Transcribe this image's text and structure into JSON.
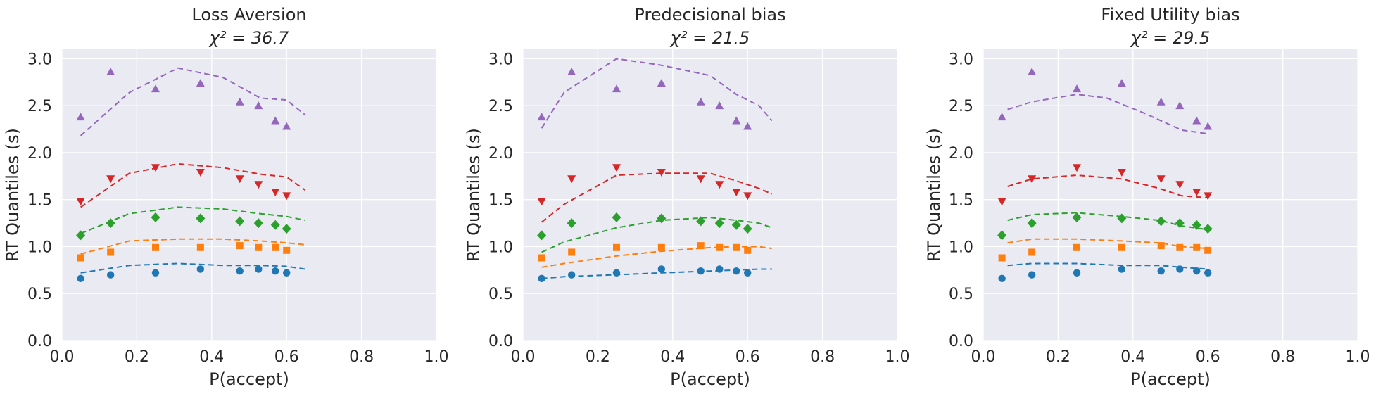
{
  "chart_data": [
    {
      "type": "scatter",
      "title": "Loss Aversion",
      "subtitle": "χ² = 36.7",
      "xlabel": "P(accept)",
      "ylabel": "RT Quantiles (s)",
      "xlim": [
        0.0,
        1.0
      ],
      "ylim": [
        0.0,
        3.1
      ],
      "xticks": [
        "0.0",
        "0.2",
        "0.4",
        "0.6",
        "0.8",
        "1.0"
      ],
      "yticks": [
        "0.0",
        "0.5",
        "1.0",
        "1.5",
        "2.0",
        "2.5",
        "3.0"
      ],
      "grid": true,
      "series": [
        {
          "color": "#1f77b4",
          "marker": "circle",
          "observed": {
            "x": [
              0.05,
              0.13,
              0.25,
              0.37,
              0.475,
              0.525,
              0.57,
              0.6
            ],
            "y": [
              0.66,
              0.7,
              0.72,
              0.76,
              0.74,
              0.76,
              0.74,
              0.72
            ]
          },
          "model": {
            "x": [
              0.05,
              0.18,
              0.31,
              0.43,
              0.53,
              0.6,
              0.65
            ],
            "y": [
              0.72,
              0.8,
              0.82,
              0.8,
              0.8,
              0.79,
              0.76
            ]
          }
        },
        {
          "color": "#ff7f0e",
          "marker": "square",
          "observed": {
            "x": [
              0.05,
              0.13,
              0.25,
              0.37,
              0.475,
              0.525,
              0.57,
              0.6
            ],
            "y": [
              0.88,
              0.94,
              0.99,
              0.99,
              1.01,
              0.99,
              0.99,
              0.96
            ]
          },
          "model": {
            "x": [
              0.05,
              0.18,
              0.31,
              0.43,
              0.53,
              0.6,
              0.65
            ],
            "y": [
              0.92,
              1.06,
              1.08,
              1.08,
              1.06,
              1.04,
              1.02
            ]
          }
        },
        {
          "color": "#2ca02c",
          "marker": "diamond",
          "observed": {
            "x": [
              0.05,
              0.13,
              0.25,
              0.37,
              0.475,
              0.525,
              0.57,
              0.6
            ],
            "y": [
              1.12,
              1.25,
              1.31,
              1.3,
              1.27,
              1.25,
              1.23,
              1.19
            ]
          },
          "model": {
            "x": [
              0.05,
              0.18,
              0.31,
              0.43,
              0.53,
              0.6,
              0.65
            ],
            "y": [
              1.14,
              1.35,
              1.42,
              1.4,
              1.35,
              1.32,
              1.28
            ]
          }
        },
        {
          "color": "#d62728",
          "marker": "triangle-down",
          "observed": {
            "x": [
              0.05,
              0.13,
              0.25,
              0.37,
              0.475,
              0.525,
              0.57,
              0.6
            ],
            "y": [
              1.48,
              1.72,
              1.84,
              1.79,
              1.72,
              1.66,
              1.58,
              1.54
            ]
          },
          "model": {
            "x": [
              0.05,
              0.18,
              0.31,
              0.43,
              0.53,
              0.6,
              0.65
            ],
            "y": [
              1.42,
              1.78,
              1.88,
              1.84,
              1.77,
              1.74,
              1.6
            ]
          }
        },
        {
          "color": "#9467bd",
          "marker": "triangle-up",
          "observed": {
            "x": [
              0.05,
              0.13,
              0.25,
              0.37,
              0.475,
              0.525,
              0.57,
              0.6
            ],
            "y": [
              2.38,
              2.86,
              2.68,
              2.74,
              2.54,
              2.5,
              2.34,
              2.28
            ]
          },
          "model": {
            "x": [
              0.05,
              0.18,
              0.31,
              0.43,
              0.53,
              0.6,
              0.65
            ],
            "y": [
              2.18,
              2.64,
              2.9,
              2.8,
              2.58,
              2.56,
              2.4
            ]
          }
        }
      ]
    },
    {
      "type": "scatter",
      "title": "Predecisional bias",
      "subtitle": "χ² = 21.5",
      "xlabel": "P(accept)",
      "ylabel": "RT Quantiles (s)",
      "xlim": [
        0.0,
        1.0
      ],
      "ylim": [
        0.0,
        3.1
      ],
      "xticks": [
        "0.0",
        "0.2",
        "0.4",
        "0.6",
        "0.8",
        "1.0"
      ],
      "yticks": [
        "0.0",
        "0.5",
        "1.0",
        "1.5",
        "2.0",
        "2.5",
        "3.0"
      ],
      "grid": true,
      "series": [
        {
          "color": "#1f77b4",
          "marker": "circle",
          "observed": {
            "x": [
              0.05,
              0.13,
              0.25,
              0.37,
              0.475,
              0.525,
              0.57,
              0.6
            ],
            "y": [
              0.66,
              0.7,
              0.72,
              0.76,
              0.74,
              0.76,
              0.74,
              0.72
            ]
          },
          "model": {
            "x": [
              0.05,
              0.11,
              0.25,
              0.37,
              0.5,
              0.57,
              0.63,
              0.665
            ],
            "y": [
              0.66,
              0.68,
              0.7,
              0.72,
              0.74,
              0.75,
              0.76,
              0.76
            ]
          }
        },
        {
          "color": "#ff7f0e",
          "marker": "square",
          "observed": {
            "x": [
              0.05,
              0.13,
              0.25,
              0.37,
              0.475,
              0.525,
              0.57,
              0.6
            ],
            "y": [
              0.88,
              0.94,
              0.99,
              0.99,
              1.01,
              0.99,
              0.99,
              0.96
            ]
          },
          "model": {
            "x": [
              0.05,
              0.11,
              0.25,
              0.37,
              0.5,
              0.57,
              0.63,
              0.665
            ],
            "y": [
              0.78,
              0.82,
              0.9,
              0.95,
              0.99,
              1.0,
              1.0,
              0.98
            ]
          }
        },
        {
          "color": "#2ca02c",
          "marker": "diamond",
          "observed": {
            "x": [
              0.05,
              0.13,
              0.25,
              0.37,
              0.475,
              0.525,
              0.57,
              0.6
            ],
            "y": [
              1.12,
              1.25,
              1.31,
              1.3,
              1.27,
              1.25,
              1.23,
              1.19
            ]
          },
          "model": {
            "x": [
              0.05,
              0.11,
              0.25,
              0.37,
              0.5,
              0.57,
              0.63,
              0.665
            ],
            "y": [
              0.94,
              1.05,
              1.2,
              1.28,
              1.31,
              1.28,
              1.25,
              1.2
            ]
          }
        },
        {
          "color": "#d62728",
          "marker": "triangle-down",
          "observed": {
            "x": [
              0.05,
              0.13,
              0.25,
              0.37,
              0.475,
              0.525,
              0.57,
              0.6
            ],
            "y": [
              1.48,
              1.72,
              1.84,
              1.79,
              1.72,
              1.66,
              1.58,
              1.54
            ]
          },
          "model": {
            "x": [
              0.05,
              0.11,
              0.25,
              0.37,
              0.5,
              0.57,
              0.63,
              0.665
            ],
            "y": [
              1.26,
              1.45,
              1.76,
              1.78,
              1.78,
              1.7,
              1.62,
              1.56
            ]
          }
        },
        {
          "color": "#9467bd",
          "marker": "triangle-up",
          "observed": {
            "x": [
              0.05,
              0.13,
              0.25,
              0.37,
              0.475,
              0.525,
              0.57,
              0.6
            ],
            "y": [
              2.38,
              2.86,
              2.68,
              2.74,
              2.54,
              2.5,
              2.34,
              2.28
            ]
          },
          "model": {
            "x": [
              0.05,
              0.11,
              0.25,
              0.37,
              0.5,
              0.57,
              0.63,
              0.665
            ],
            "y": [
              2.26,
              2.64,
              3.0,
              2.93,
              2.82,
              2.62,
              2.5,
              2.34
            ]
          }
        }
      ]
    },
    {
      "type": "scatter",
      "title": "Fixed Utility bias",
      "subtitle": "χ² = 29.5",
      "xlabel": "P(accept)",
      "ylabel": "RT Quantiles (s)",
      "xlim": [
        0.0,
        1.0
      ],
      "ylim": [
        0.0,
        3.1
      ],
      "xticks": [
        "0.0",
        "0.2",
        "0.4",
        "0.6",
        "0.8",
        "1.0"
      ],
      "yticks": [
        "0.0",
        "0.5",
        "1.0",
        "1.5",
        "2.0",
        "2.5",
        "3.0"
      ],
      "grid": true,
      "series": [
        {
          "color": "#1f77b4",
          "marker": "circle",
          "observed": {
            "x": [
              0.05,
              0.13,
              0.25,
              0.37,
              0.475,
              0.525,
              0.57,
              0.6
            ],
            "y": [
              0.66,
              0.7,
              0.72,
              0.76,
              0.74,
              0.76,
              0.74,
              0.72
            ]
          },
          "model": {
            "x": [
              0.065,
              0.13,
              0.25,
              0.37,
              0.47,
              0.53,
              0.6
            ],
            "y": [
              0.8,
              0.82,
              0.82,
              0.8,
              0.8,
              0.78,
              0.76
            ]
          }
        },
        {
          "color": "#ff7f0e",
          "marker": "square",
          "observed": {
            "x": [
              0.05,
              0.13,
              0.25,
              0.37,
              0.475,
              0.525,
              0.57,
              0.6
            ],
            "y": [
              0.88,
              0.94,
              0.99,
              0.99,
              1.01,
              0.99,
              0.99,
              0.96
            ]
          },
          "model": {
            "x": [
              0.065,
              0.13,
              0.25,
              0.37,
              0.47,
              0.53,
              0.6
            ],
            "y": [
              1.04,
              1.08,
              1.08,
              1.06,
              1.04,
              1.0,
              0.98
            ]
          }
        },
        {
          "color": "#2ca02c",
          "marker": "diamond",
          "observed": {
            "x": [
              0.05,
              0.13,
              0.25,
              0.37,
              0.475,
              0.525,
              0.57,
              0.6
            ],
            "y": [
              1.12,
              1.25,
              1.31,
              1.3,
              1.27,
              1.25,
              1.23,
              1.19
            ]
          },
          "model": {
            "x": [
              0.065,
              0.13,
              0.25,
              0.37,
              0.47,
              0.53,
              0.6
            ],
            "y": [
              1.28,
              1.34,
              1.36,
              1.32,
              1.28,
              1.22,
              1.18
            ]
          }
        },
        {
          "color": "#d62728",
          "marker": "triangle-down",
          "observed": {
            "x": [
              0.05,
              0.13,
              0.25,
              0.37,
              0.475,
              0.525,
              0.57,
              0.6
            ],
            "y": [
              1.48,
              1.72,
              1.84,
              1.79,
              1.72,
              1.66,
              1.58,
              1.54
            ]
          },
          "model": {
            "x": [
              0.065,
              0.13,
              0.25,
              0.37,
              0.47,
              0.53,
              0.6
            ],
            "y": [
              1.64,
              1.72,
              1.76,
              1.72,
              1.62,
              1.54,
              1.52
            ]
          }
        },
        {
          "color": "#9467bd",
          "marker": "triangle-up",
          "observed": {
            "x": [
              0.05,
              0.13,
              0.25,
              0.37,
              0.475,
              0.525,
              0.57,
              0.6
            ],
            "y": [
              2.38,
              2.86,
              2.68,
              2.74,
              2.54,
              2.5,
              2.34,
              2.28
            ]
          },
          "model": {
            "x": [
              0.065,
              0.13,
              0.25,
              0.33,
              0.43,
              0.53,
              0.6
            ],
            "y": [
              2.46,
              2.54,
              2.62,
              2.58,
              2.42,
              2.24,
              2.2
            ]
          }
        }
      ]
    }
  ]
}
